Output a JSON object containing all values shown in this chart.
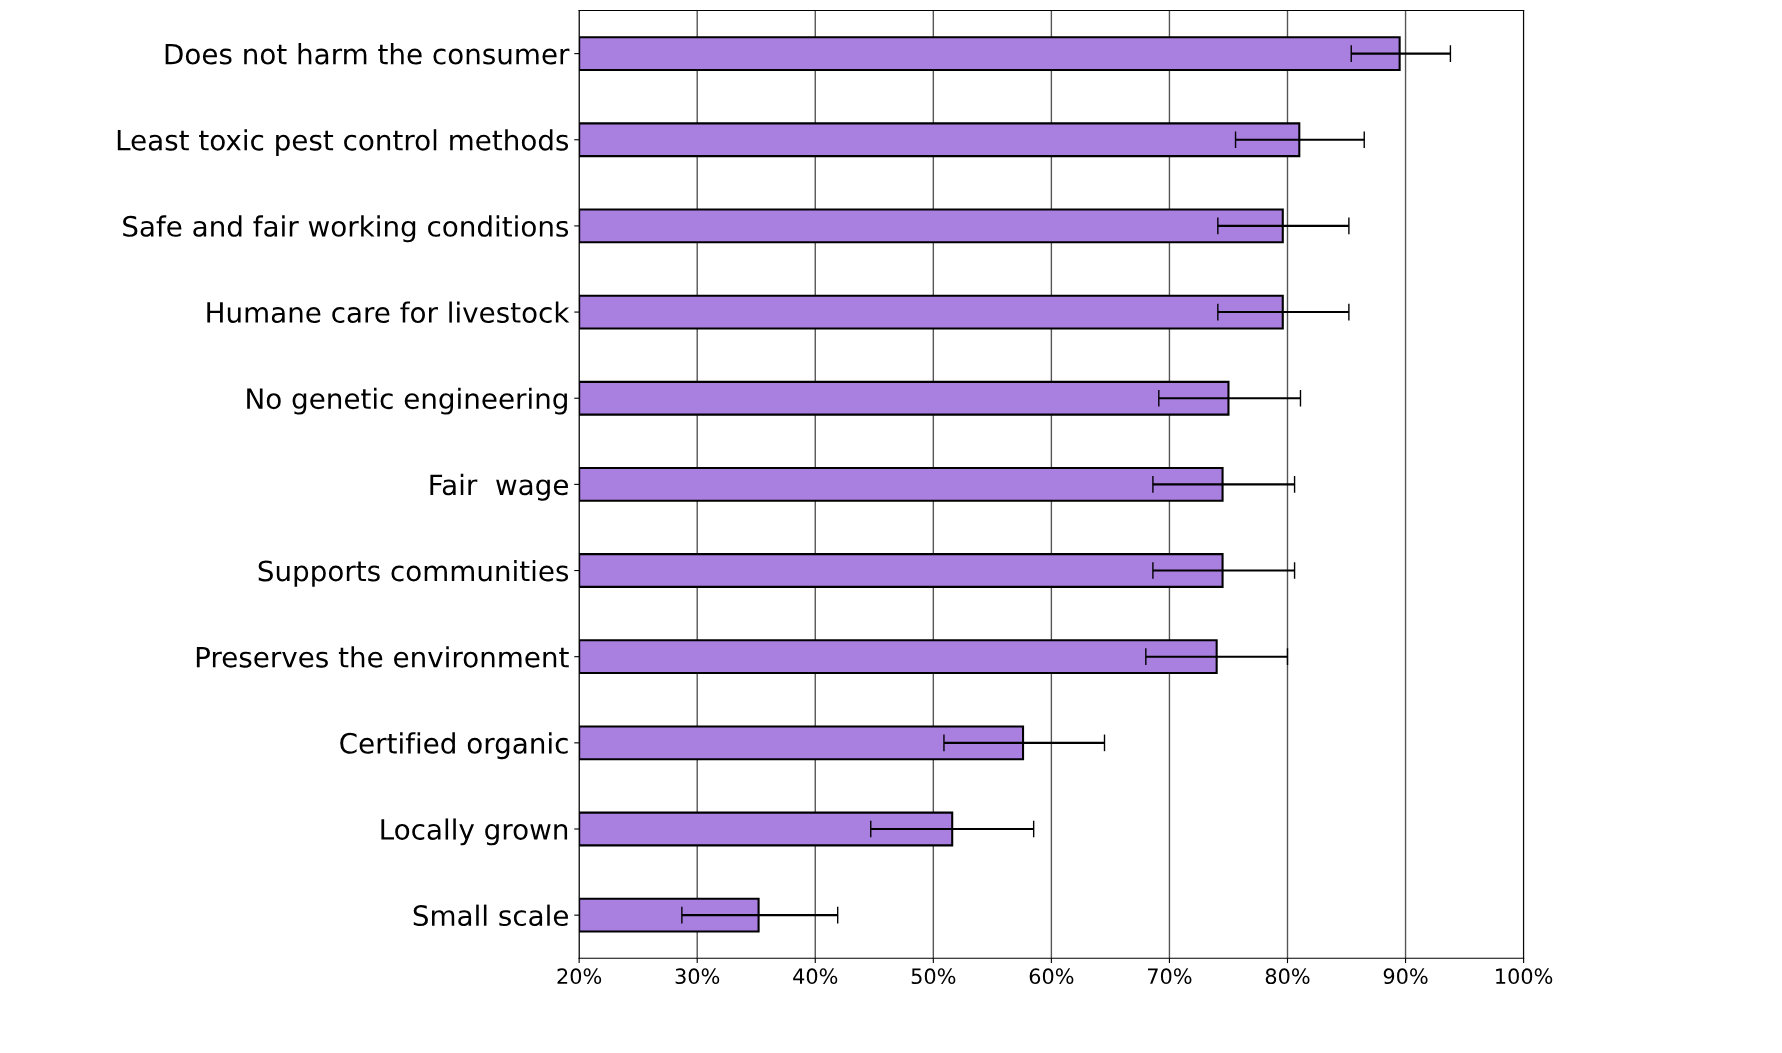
{
  "chart_data": {
    "type": "bar",
    "orientation": "horizontal",
    "categories": [
      "Does not harm the consumer",
      "Least toxic pest control methods",
      "Safe and fair working conditions",
      "Humane care for livestock",
      "No genetic engineering",
      "Fair  wage",
      "Supports communities",
      "Preserves the environment",
      "Certified organic",
      "Locally grown",
      "Small scale"
    ],
    "values": [
      89.5,
      81.0,
      79.6,
      79.6,
      75.0,
      74.5,
      74.5,
      74.0,
      57.6,
      51.6,
      35.2
    ],
    "errors": [
      [
        85.4,
        93.8
      ],
      [
        75.6,
        86.5
      ],
      [
        74.1,
        85.2
      ],
      [
        74.1,
        85.2
      ],
      [
        69.1,
        81.1
      ],
      [
        68.6,
        80.6
      ],
      [
        68.6,
        80.6
      ],
      [
        68.0,
        80.0
      ],
      [
        50.9,
        64.5
      ],
      [
        44.7,
        58.5
      ],
      [
        28.7,
        41.9
      ]
    ],
    "color": "#a97fe0",
    "xlim": [
      20,
      100
    ],
    "xticks": [
      {
        "value": 20,
        "label": "20%"
      },
      {
        "value": 30,
        "label": "30%"
      },
      {
        "value": 40,
        "label": "40%"
      },
      {
        "value": 50,
        "label": "50%"
      },
      {
        "value": 60,
        "label": "60%"
      },
      {
        "value": 70,
        "label": "70%"
      },
      {
        "value": 80,
        "label": "80%"
      },
      {
        "value": 90,
        "label": "90%"
      },
      {
        "value": 100,
        "label": "100%"
      }
    ],
    "grid": "x"
  }
}
